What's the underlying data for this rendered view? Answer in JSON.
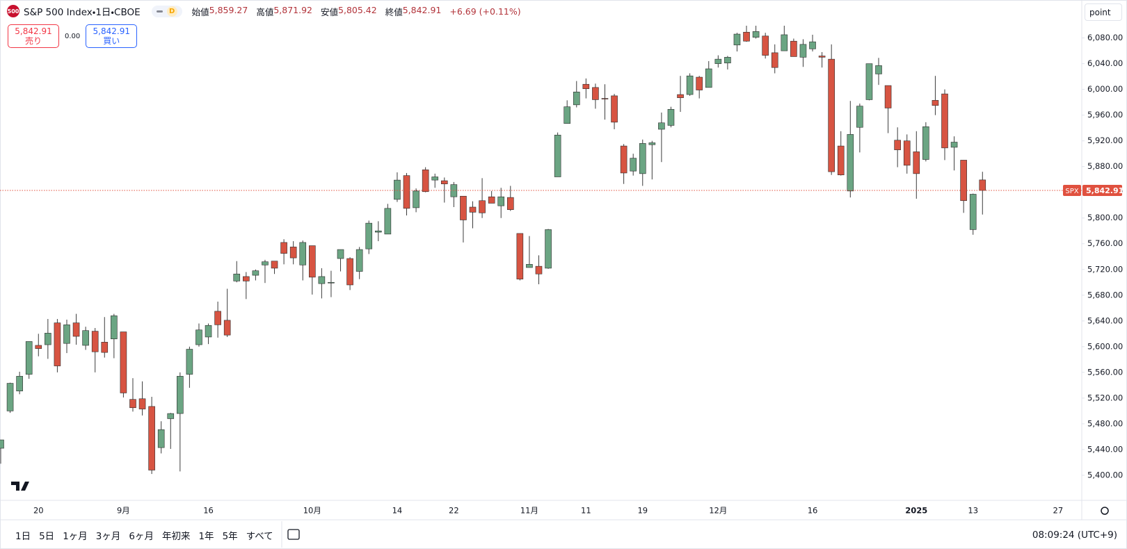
{
  "chart_data": {
    "type": "candlestick",
    "title": "S&P 500 Index・1日・CBOE",
    "symbol_badge": "500",
    "interval_badge": "D",
    "ohlc_legend": [
      {
        "name": "始値",
        "value": "5,859.27"
      },
      {
        "name": "高値",
        "value": "5,871.92"
      },
      {
        "name": "安値",
        "value": "5,805.42"
      },
      {
        "name": "終値",
        "value": "5,842.91"
      }
    ],
    "change": "+6.69 (+0.11%)",
    "sell": {
      "price": "5,842.91",
      "label": "売り"
    },
    "spread": "0.00",
    "buy": {
      "price": "5,842.91",
      "label": "買い"
    },
    "unit_button": "point",
    "categories": [
      null,
      null,
      null,
      null,
      "20",
      null,
      null,
      null,
      null,
      null,
      null,
      null,
      null,
      "9月",
      null,
      null,
      null,
      null,
      null,
      null,
      null,
      null,
      "16",
      null,
      null,
      null,
      null,
      null,
      null,
      null,
      null,
      null,
      null,
      "10月",
      null,
      null,
      null,
      null,
      null,
      null,
      null,
      null,
      "14",
      null,
      null,
      null,
      null,
      null,
      "22",
      null,
      null,
      null,
      null,
      null,
      null,
      null,
      "11月",
      null,
      null,
      null,
      null,
      null,
      "11",
      null,
      null,
      null,
      null,
      null,
      "19",
      null,
      null,
      null,
      null,
      null,
      null,
      null,
      "12月",
      null,
      null,
      null,
      null,
      null,
      null,
      null,
      null,
      null,
      "16",
      null,
      null,
      null,
      null,
      null,
      null,
      null,
      null,
      null,
      null,
      "2025",
      null,
      null,
      null,
      null,
      null,
      "13",
      null,
      null,
      null,
      null,
      null,
      null,
      null,
      null,
      "27",
      null,
      null
    ],
    "open": [
      5442,
      5500,
      5531,
      5557,
      5602,
      5603,
      5637,
      5605,
      5637,
      5602,
      5624,
      5607,
      5612,
      5623,
      5518,
      5519,
      5507,
      5443,
      5488,
      5496,
      5557,
      5603,
      5615,
      5655,
      5641,
      5702,
      5709,
      5711,
      5727,
      5733,
      5762,
      5755,
      5727,
      5757,
      5698,
      5699,
      5737,
      5737,
      5717,
      5752,
      5778,
      5775,
      5829,
      5866,
      5816,
      5875,
      5859,
      5858,
      5833,
      5834,
      5817,
      5827,
      5833,
      5819,
      5832,
      5776,
      5723,
      5725,
      5722,
      5864,
      5947,
      5976,
      6008,
      6003,
      5986,
      5990,
      5912,
      5873,
      5869,
      5914,
      5938,
      5944,
      5992,
      5992,
      6019,
      6003,
      6040,
      6041,
      6069,
      6089,
      6081,
      6083,
      6057,
      6060,
      6075,
      6050,
      6063,
      6052,
      6047,
      5912,
      5842,
      5941,
      5984,
      6024,
      6006,
      5921,
      5920,
      5903,
      5891,
      5983,
      5993,
      5910,
      5890,
      5782,
      5859.27,
      null,
      null,
      null,
      null,
      null,
      null,
      null,
      null,
      null,
      null
    ],
    "high": [
      5455,
      5544,
      5561,
      5608,
      5620,
      5643,
      5643,
      5642,
      5651,
      5631,
      5629,
      5646,
      5651,
      5623,
      5551,
      5546,
      5522,
      5484,
      5497,
      5560,
      5600,
      5636,
      5636,
      5670,
      5690,
      5733,
      5716,
      5720,
      5735,
      5733,
      5767,
      5764,
      5765,
      5757,
      5722,
      5718,
      5751,
      5739,
      5755,
      5796,
      5795,
      5822,
      5871,
      5870,
      5846,
      5879,
      5869,
      5863,
      5856,
      5834,
      5826,
      5862,
      5842,
      5847,
      5850,
      5776,
      5772,
      5742,
      5783,
      5933,
      5983,
      6013,
      6017,
      6009,
      6008,
      5993,
      5915,
      5900,
      5922,
      5920,
      5964,
      5973,
      6021,
      6025,
      6021,
      6044,
      6053,
      6052,
      6088,
      6099,
      6099,
      6088,
      6070,
      6099,
      6079,
      6078,
      6085,
      6058,
      6070,
      5935,
      5982,
      5978,
      6040,
      6049,
      6006,
      5941,
      5930,
      5935,
      5949,
      6021,
      6000,
      5927,
      5890,
      5838,
      5871.92,
      null,
      null,
      null,
      null,
      null,
      null,
      null,
      null,
      null,
      null
    ],
    "low": [
      5418,
      5497,
      5526,
      5550,
      5585,
      5581,
      5560,
      5590,
      5603,
      5595,
      5560,
      5583,
      5582,
      5521,
      5499,
      5493,
      5402,
      5434,
      5441,
      5406,
      5536,
      5600,
      5604,
      5614,
      5615,
      5700,
      5674,
      5703,
      5699,
      5713,
      5728,
      5728,
      5703,
      5681,
      5675,
      5677,
      5717,
      5688,
      5705,
      5744,
      5764,
      5775,
      5825,
      5804,
      5809,
      5840,
      5847,
      5824,
      5817,
      5762,
      5784,
      5800,
      5823,
      5800,
      5811,
      5703,
      5723,
      5697,
      5721,
      5864,
      5947,
      5972,
      5986,
      5970,
      5953,
      5938,
      5853,
      5866,
      5850,
      5860,
      5887,
      5941,
      5965,
      5990,
      5986,
      6003,
      6034,
      6031,
      6059,
      6074,
      6079,
      6048,
      6025,
      6060,
      6051,
      6035,
      6059,
      6034,
      5867,
      5866,
      5832,
      5902,
      5983,
      6007,
      5932,
      5879,
      5869,
      5830,
      5888,
      5960,
      5890,
      5874,
      5808,
      5774,
      5805.42,
      null,
      null,
      null,
      null,
      null,
      null,
      null,
      null,
      null,
      null
    ],
    "close": [
      5455,
      5543,
      5554,
      5608,
      5597,
      5621,
      5570,
      5634,
      5616,
      5625,
      5592,
      5591,
      5648,
      5528,
      5505,
      5503,
      5408,
      5471,
      5496,
      5554,
      5596,
      5626,
      5633,
      5634,
      5618,
      5713,
      5702,
      5718,
      5732,
      5722,
      5745,
      5738,
      5762,
      5708,
      5709,
      5700,
      5751,
      5696,
      5751,
      5792,
      5780,
      5815,
      5859,
      5815,
      5842,
      5841,
      5864,
      5853,
      5852,
      5797,
      5809,
      5808,
      5823,
      5833,
      5813,
      5705,
      5728,
      5713,
      5782,
      5929,
      5973,
      5996,
      6001,
      5984,
      5985,
      5949,
      5870,
      5893,
      5916,
      5917,
      5948,
      5969,
      5987,
      6021,
      5999,
      6032,
      6047,
      6050,
      6086,
      6075,
      6090,
      6053,
      6034,
      6085,
      6051,
      6070,
      6074,
      6050,
      5872,
      5867,
      5930,
      5974,
      6040,
      6037,
      5971,
      5906,
      5882,
      5869,
      5942,
      5975,
      5909,
      5918,
      5827,
      5837,
      5842.91,
      null,
      null,
      null,
      null,
      null,
      null,
      null,
      null,
      null,
      null
    ],
    "up_color": "#6ba583",
    "down_color": "#d75442",
    "wick_color": "#3b3b3b",
    "ylim": [
      5361,
      6139
    ],
    "yticks": [
      {
        "value": 5400,
        "label": "5,400.00"
      },
      {
        "value": 5440,
        "label": "5,440.00"
      },
      {
        "value": 5480,
        "label": "5,480.00"
      },
      {
        "value": 5520,
        "label": "5,520.00"
      },
      {
        "value": 5560,
        "label": "5,560.00"
      },
      {
        "value": 5600,
        "label": "5,600.00"
      },
      {
        "value": 5640,
        "label": "5,640.00"
      },
      {
        "value": 5680,
        "label": "5,680.00"
      },
      {
        "value": 5720,
        "label": "5,720.00"
      },
      {
        "value": 5760,
        "label": "5,760.00"
      },
      {
        "value": 5800,
        "label": "5,800.00"
      },
      {
        "value": 5840,
        "label": "5,840.00"
      },
      {
        "value": 5880,
        "label": "5,880.00"
      },
      {
        "value": 5920,
        "label": "5,920.00"
      },
      {
        "value": 5960,
        "label": "5,960.00"
      },
      {
        "value": 6000,
        "label": "6,000.00"
      },
      {
        "value": 6040,
        "label": "6,040.00"
      },
      {
        "value": 6080,
        "label": "6,080.00"
      }
    ],
    "grid": false,
    "last_price": {
      "symbol": "SPX",
      "label": "5,842.91",
      "color": "#e0513f"
    }
  },
  "toolbar": {
    "periods": [
      "1日",
      "5日",
      "1ヶ月",
      "3ヶ月",
      "6ヶ月",
      "年初来",
      "1年",
      "5年",
      "すべて"
    ],
    "time": "08:09:24 (UTC+9)"
  }
}
